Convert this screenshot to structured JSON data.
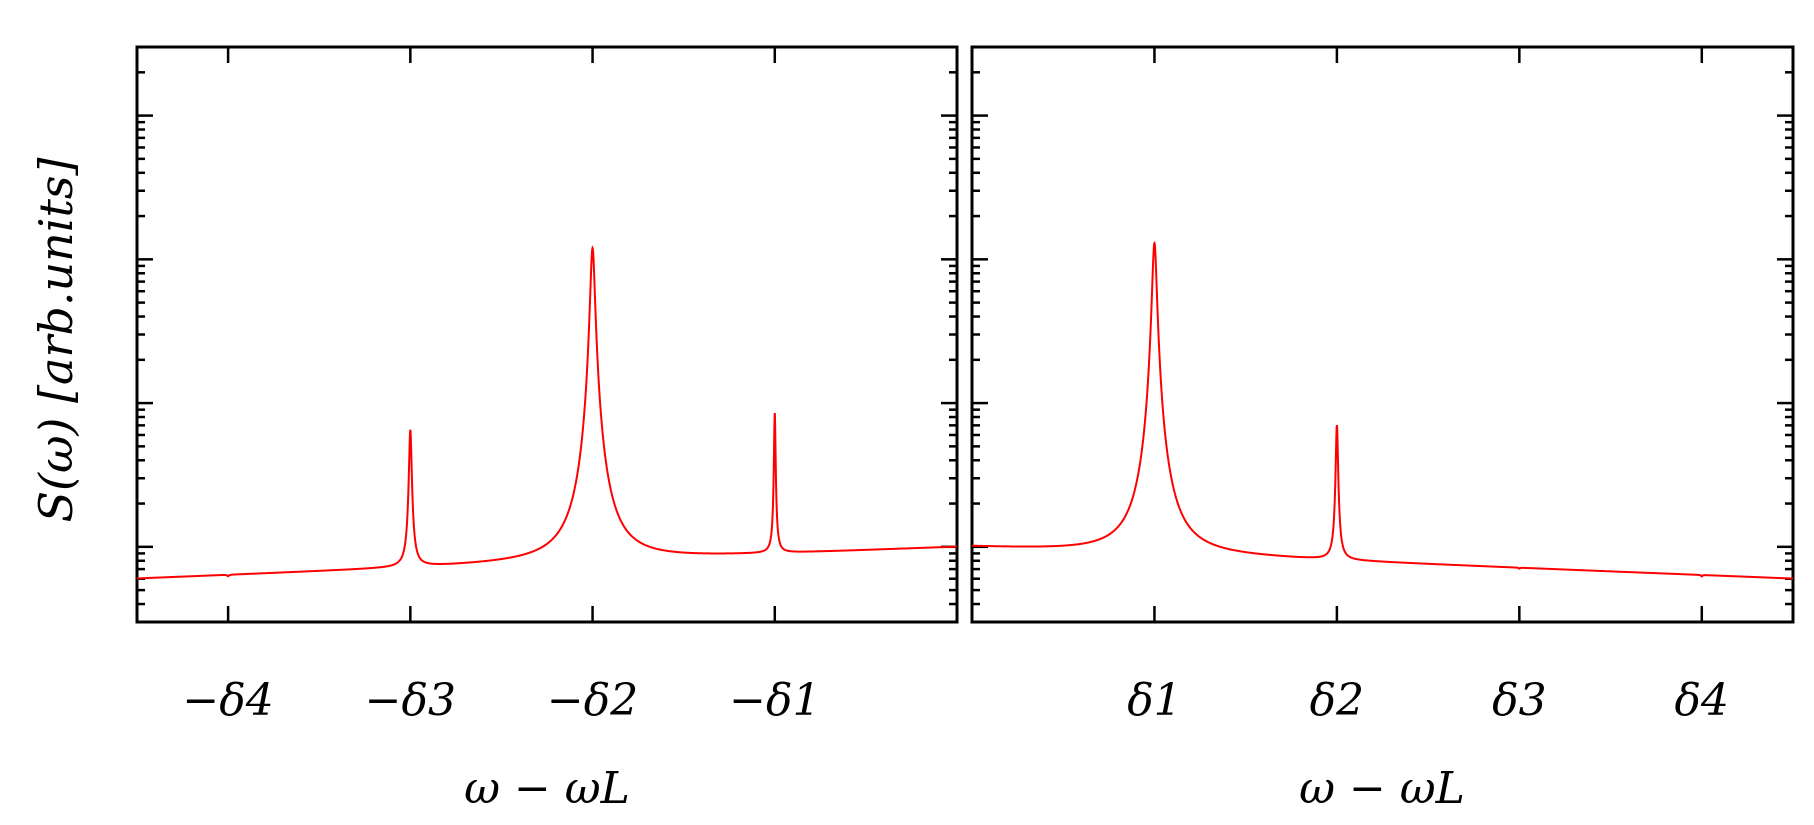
{
  "chart_data": [
    {
      "type": "line",
      "panel": "left",
      "xlabel": "ω − ωL",
      "ylabel": "S(ω) [arb.units]",
      "yscale": "log",
      "xlim": [
        -4.5,
        0.0
      ],
      "ylim": [
        0.3,
        3000
      ],
      "x_ticks": [
        {
          "x": -4,
          "label": "−δ4"
        },
        {
          "x": -3,
          "label": "−δ3"
        },
        {
          "x": -2,
          "label": "−δ2"
        },
        {
          "x": -1,
          "label": "−δ1"
        }
      ],
      "baseline": {
        "x_start": -4.5,
        "y_start": 0.6,
        "x_end": 0.0,
        "y_end": 1.0
      },
      "peaks": [
        {
          "x": -4,
          "height": 0.62,
          "width": 0.006
        },
        {
          "x": -3,
          "height": 6.5,
          "width": 0.007
        },
        {
          "x": -2,
          "height": 120,
          "width": 0.012
        },
        {
          "x": -1,
          "height": 8.5,
          "width": 0.004
        }
      ],
      "line_color": "#ff0000",
      "grid": false
    },
    {
      "type": "line",
      "panel": "right",
      "xlabel": "ω − ωL",
      "ylabel": "",
      "yscale": "log",
      "xlim": [
        0.0,
        4.5
      ],
      "ylim": [
        0.3,
        3000
      ],
      "x_ticks": [
        {
          "x": 1,
          "label": "δ1"
        },
        {
          "x": 2,
          "label": "δ2"
        },
        {
          "x": 3,
          "label": "δ3"
        },
        {
          "x": 4,
          "label": "δ4"
        }
      ],
      "baseline": {
        "x_start": 0.0,
        "y_start": 1.0,
        "x_end": 4.5,
        "y_end": 0.6
      },
      "peaks": [
        {
          "x": 1,
          "height": 130,
          "width": 0.012
        },
        {
          "x": 2,
          "height": 7,
          "width": 0.006
        },
        {
          "x": 3,
          "height": 0.7,
          "width": 0.004
        },
        {
          "x": 4,
          "height": 0.62,
          "width": 0.004
        }
      ],
      "line_color": "#ff0000",
      "grid": false
    }
  ]
}
